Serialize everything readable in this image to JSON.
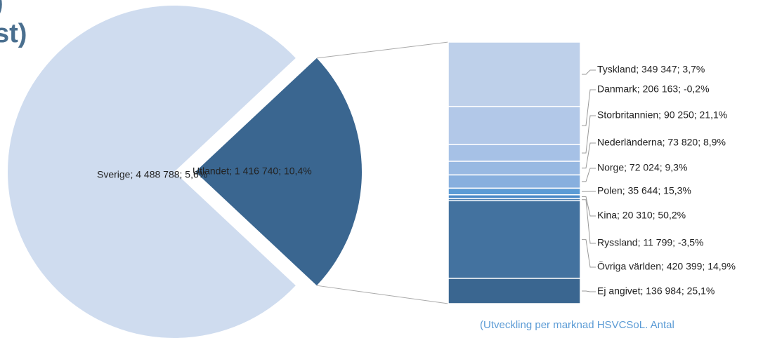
{
  "chart_data": {
    "type": "pie",
    "title_fragments": [
      ")",
      "st)"
    ],
    "slices": {
      "categories": [
        "Sverige",
        "Utlandet"
      ],
      "values": [
        4488788,
        1416740
      ],
      "value_labels": [
        "Sverige; 4 488 788; 5,6%",
        "Utlandet; 1 416 740; 10,4%"
      ],
      "colors": [
        "#cfdcef",
        "#3a6690"
      ]
    },
    "breakdown": {
      "type": "bar",
      "categories": [
        "Tyskland",
        "Danmark",
        "Storbritannien",
        "Nederländerna",
        "Norge",
        "Polen",
        "Kina",
        "Ryssland",
        "Övriga världen",
        "Ej angivet"
      ],
      "values": [
        349347,
        206163,
        90250,
        73820,
        72024,
        35644,
        20310,
        11799,
        420399,
        136984
      ],
      "value_labels": [
        "Tyskland; 349 347; 3,7%",
        "Danmark; 206 163; -0,2%",
        "Storbritannien; 90 250; 21,1%",
        "Nederländerna; 73 820; 8,9%",
        "Norge; 72 024; 9,3%",
        "Polen; 35 644; 15,3%",
        "Kina; 20 310; 50,2%",
        "Ryssland; 11 799; -3,5%",
        "Övriga världen; 420 399; 14,9%",
        "Ej angivet; 136 984; 25,1%"
      ],
      "colors": [
        "#bed0ea",
        "#b2c8e8",
        "#a6c1e6",
        "#98b9e2",
        "#87afde",
        "#5b9bd5",
        "#4b8ac8",
        "#4e80b3",
        "#43729f",
        "#3a6690"
      ]
    },
    "note": "(Utveckling per marknad HSVCSoL. Antal"
  }
}
